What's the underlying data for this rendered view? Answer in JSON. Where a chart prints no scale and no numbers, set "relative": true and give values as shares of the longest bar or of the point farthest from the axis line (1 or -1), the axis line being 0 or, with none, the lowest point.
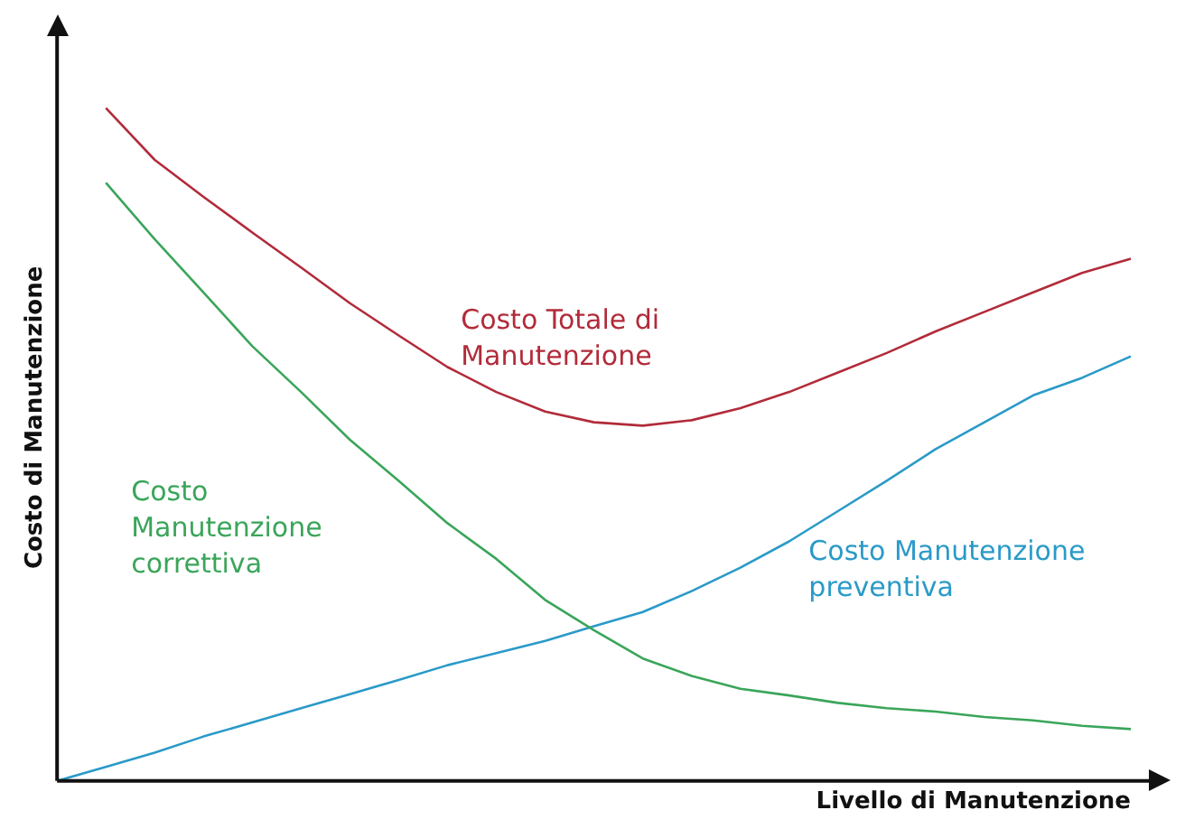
{
  "chart_data": {
    "type": "line",
    "relative": true,
    "xlabel": "Livello di Manutenzione",
    "ylabel": "Costo di Manutenzione",
    "tick_labels": false,
    "grid": false,
    "legend": false,
    "marker": "none",
    "line_style": "solid",
    "categories": [
      null,
      null,
      null,
      null,
      null,
      null,
      null,
      null,
      null,
      null,
      null,
      null,
      null,
      null,
      null,
      null,
      null,
      null,
      null,
      null,
      null,
      null,
      null
    ],
    "series": [
      {
        "name": "Costo Totale di Manutenzione",
        "color": "#b22b3a",
        "values": [
          null,
          1,
          0.923,
          0.868,
          0.815,
          0.763,
          0.71,
          0.662,
          0.615,
          0.578,
          0.549,
          0.533,
          0.528,
          0.536,
          0.554,
          0.578,
          0.607,
          0.636,
          0.668,
          0.697,
          0.726,
          0.755,
          0.776
        ]
      },
      {
        "name": "Costo Manutenzione correttiva",
        "color": "#3aa55a",
        "values": [
          null,
          0.889,
          0.805,
          0.726,
          0.646,
          0.578,
          0.507,
          0.446,
          0.383,
          0.33,
          0.269,
          0.224,
          0.182,
          0.156,
          0.137,
          0.127,
          0.116,
          0.108,
          0.103,
          0.095,
          0.09,
          0.082,
          0.077
        ]
      },
      {
        "name": "Costo Manutenzione preventiva",
        "color": "#2a9ac8",
        "values": [
          0,
          0.021,
          0.042,
          0.066,
          0.087,
          0.108,
          0.129,
          0.15,
          0.172,
          0.19,
          0.208,
          0.23,
          0.251,
          0.282,
          0.317,
          0.356,
          0.401,
          0.446,
          0.493,
          0.533,
          0.573,
          0.599,
          0.631
        ]
      }
    ]
  }
}
